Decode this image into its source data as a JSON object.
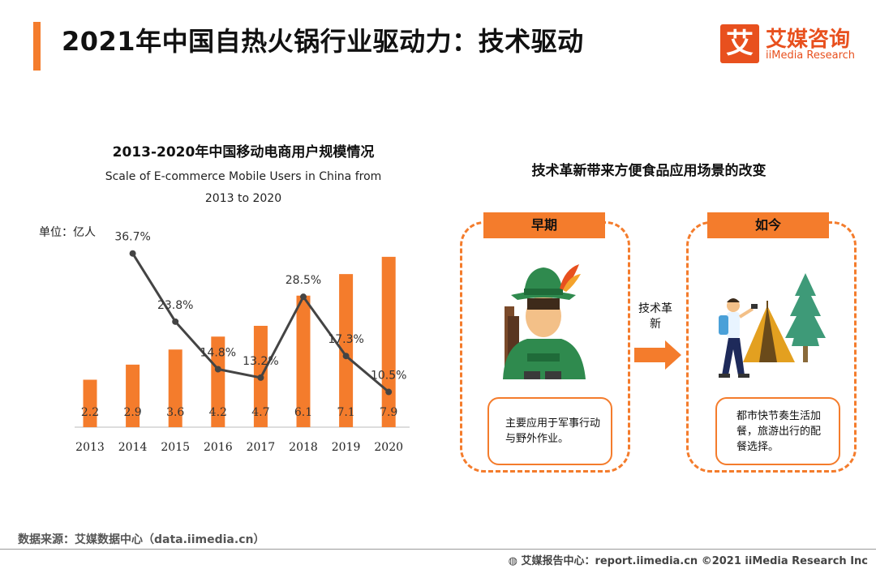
{
  "header": {
    "title": "2021年中国自热火锅行业驱动力：技术驱动",
    "logo_mark": "艾",
    "logo_cn": "艾媒咨询",
    "logo_en": "iiMedia Research"
  },
  "colors": {
    "accent": "#f47c2c",
    "line": "#444444",
    "logo": "#e8501e"
  },
  "chart_data": {
    "type": "bar",
    "title": "2013-2020年中国移动电商用户规模情况",
    "subtitle_line1": "Scale of E-commerce Mobile Users in China from",
    "subtitle_line2": "2013 to 2020",
    "unit_label": "单位：亿人",
    "categories": [
      "2013",
      "2014",
      "2015",
      "2016",
      "2017",
      "2018",
      "2019",
      "2020"
    ],
    "series": [
      {
        "type": "bar",
        "values": [
          2.2,
          2.9,
          3.6,
          4.2,
          4.7,
          6.1,
          7.1,
          7.9
        ],
        "color": "#f47c2c"
      },
      {
        "type": "line",
        "values": [
          null,
          36.7,
          23.8,
          14.8,
          13.2,
          28.5,
          17.3,
          10.5
        ],
        "labels": [
          "",
          "36.7%",
          "23.8%",
          "14.8%",
          "13.2%",
          "28.5%",
          "17.3%",
          "10.5%"
        ],
        "color": "#444444"
      }
    ],
    "ylim_bars": [
      0,
      8.5
    ],
    "ylim_line": [
      0,
      40
    ],
    "grid": false,
    "legend": "none"
  },
  "comparison": {
    "title": "技术革新带来方便食品应用场景的改变",
    "early": {
      "label": "早期",
      "note": "主要应用于军事行动与野外作业。",
      "icon": "soldier-icon"
    },
    "now": {
      "label": "如今",
      "note": "都市快节奏生活加餐，旅游出行的配餐选择。",
      "icon": "camping-icon"
    },
    "arrow_label": "技术革新",
    "arrow_icon": "arrow-right-icon"
  },
  "footer": {
    "source": "数据来源：艾媒数据中心（data.iimedia.cn）",
    "copyright": "艾媒报告中心：report.iimedia.cn    ©2021  iiMedia Research  Inc"
  }
}
